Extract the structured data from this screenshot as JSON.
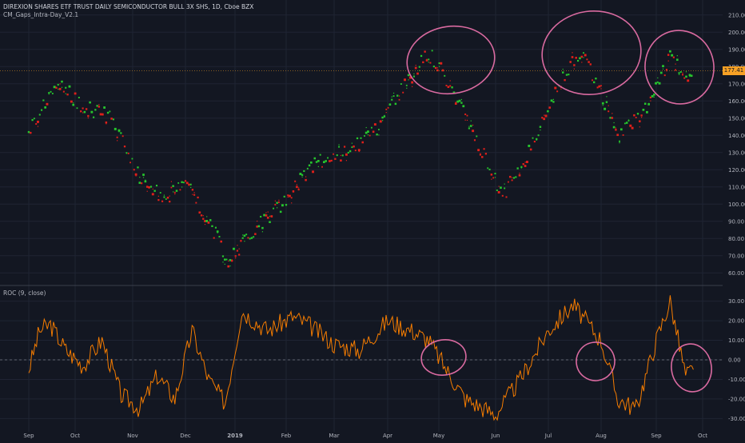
{
  "header": {
    "title": "DIREXION SHARES ETF TRUST DAILY SEMICONDUCTOR BULL 3X SHS, 1D, Cboe BZX",
    "indicator": "CM_Gaps_Intra-Day_V2.1"
  },
  "roc_panel": {
    "title": "ROC (9, close)"
  },
  "last_price": {
    "value": "177.41"
  },
  "colors": {
    "background": "#131722",
    "grid": "#1f2433",
    "up": "#26c62d",
    "down": "#e0201a",
    "roc_line": "#f57c00",
    "annotation": "#d96aa0",
    "price_badge": "#f7a125"
  },
  "chart_data": [
    {
      "type": "scatter",
      "title": "",
      "xlabel": "",
      "ylabel": "",
      "x_ticks": [
        "Sep",
        "Oct",
        "Nov",
        "Dec",
        "2019",
        "Feb",
        "Mar",
        "Apr",
        "May",
        "Jun",
        "Jul",
        "Aug",
        "Sep",
        "Oct"
      ],
      "y_ticks": [
        "210.00",
        "200.00",
        "190.00",
        "180.00",
        "170.00",
        "160.00",
        "150.00",
        "140.00",
        "130.00",
        "120.00",
        "110.00",
        "100.00",
        "90.00",
        "80.00",
        "70.00",
        "60.00"
      ],
      "ylim": [
        55,
        215
      ],
      "series": [
        {
          "name": "",
          "color": "up"
        },
        {
          "name": "",
          "color": "down"
        }
      ],
      "approx_close_path": [
        [
          "Sep 1",
          142
        ],
        [
          "Sep 20",
          170
        ],
        [
          "Oct 5",
          157
        ],
        [
          "Oct 20",
          150
        ],
        [
          "Nov 5",
          115
        ],
        [
          "Nov 20",
          103
        ],
        [
          "Dec 1",
          115
        ],
        [
          "Dec 15",
          90
        ],
        [
          "Dec 27",
          68
        ],
        [
          "Jan 15",
          88
        ],
        [
          "Feb 1",
          103
        ],
        [
          "Feb 20",
          125
        ],
        [
          "Mar 10",
          131
        ],
        [
          "Mar 25",
          143
        ],
        [
          "Apr 10",
          168
        ],
        [
          "Apr 25",
          188
        ],
        [
          "May 5",
          173
        ],
        [
          "May 20",
          140
        ],
        [
          "Jun 5",
          105
        ],
        [
          "Jun 20",
          130
        ],
        [
          "Jul 5",
          165
        ],
        [
          "Jul 20",
          190
        ],
        [
          "Aug 1",
          165
        ],
        [
          "Aug 10",
          140
        ],
        [
          "Aug 25",
          155
        ],
        [
          "Sep 10",
          185
        ],
        [
          "Sep 25",
          172
        ]
      ]
    },
    {
      "type": "line",
      "title": "ROC (9, close)",
      "xlabel": "",
      "ylabel": "",
      "y_ticks": [
        "30.00",
        "20.00",
        "10.00",
        "0.00",
        "-10.00",
        "-20.00",
        "-30.00"
      ],
      "ylim": [
        -36,
        36
      ],
      "zero_line": true,
      "approx_values": [
        [
          "Sep 1",
          -5
        ],
        [
          "Sep 8",
          15
        ],
        [
          "Sep 15",
          18
        ],
        [
          "Sep 25",
          5
        ],
        [
          "Oct 5",
          -3
        ],
        [
          "Oct 15",
          10
        ],
        [
          "Oct 25",
          -18
        ],
        [
          "Nov 5",
          -25
        ],
        [
          "Nov 15",
          -8
        ],
        [
          "Nov 25",
          -20
        ],
        [
          "Dec 5",
          15
        ],
        [
          "Dec 15",
          -10
        ],
        [
          "Dec 25",
          -22
        ],
        [
          "Jan 5",
          25
        ],
        [
          "Jan 20",
          15
        ],
        [
          "Feb 5",
          22
        ],
        [
          "Feb 15",
          18
        ],
        [
          "Mar 1",
          8
        ],
        [
          "Mar 15",
          5
        ],
        [
          "Apr 1",
          20
        ],
        [
          "Apr 15",
          15
        ],
        [
          "Apr 25",
          10
        ],
        [
          "May 5",
          -5
        ],
        [
          "May 15",
          -20
        ],
        [
          "Jun 1",
          -28
        ],
        [
          "Jun 15",
          -10
        ],
        [
          "Jul 1",
          15
        ],
        [
          "Jul 15",
          28
        ],
        [
          "Aug 1",
          10
        ],
        [
          "Aug 10",
          -20
        ],
        [
          "Aug 20",
          -25
        ],
        [
          "Sep 1",
          10
        ],
        [
          "Sep 10",
          30
        ],
        [
          "Sep 20",
          -8
        ],
        [
          "Sep 25",
          -5
        ]
      ]
    }
  ]
}
